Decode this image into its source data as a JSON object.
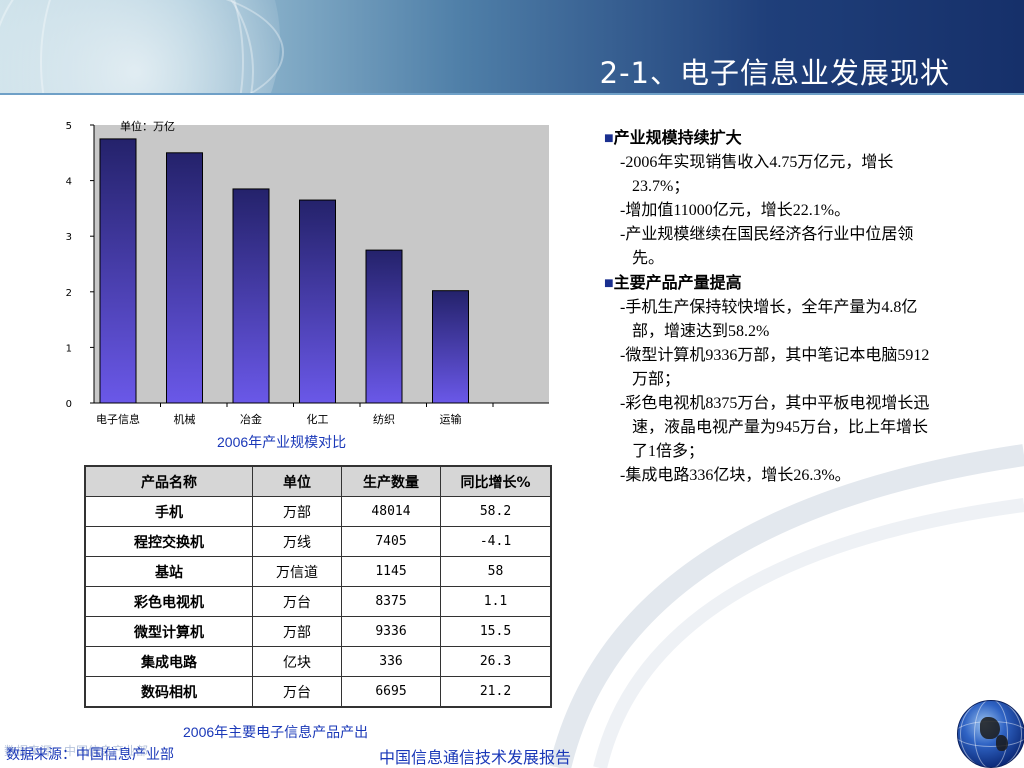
{
  "slide": {
    "title": "2-1、电子信息业发展现状"
  },
  "chart_data": {
    "type": "bar",
    "unit_note": "单位：万亿",
    "categories": [
      "电子信息",
      "机械",
      "冶金",
      "化工",
      "纺织",
      "运输"
    ],
    "values": [
      4.75,
      4.5,
      3.85,
      3.65,
      2.75,
      2.02
    ],
    "ylim": [
      0,
      5
    ],
    "yticks": [
      "0",
      "1",
      "2",
      "3",
      "4",
      "5"
    ],
    "grid": false,
    "colors": {
      "bar_top": "#24226b",
      "bar_bottom": "#6a58e8",
      "plot_bg": "#c8c8c8"
    }
  },
  "chart_caption": "2006年产业规模对比",
  "table": {
    "headers": [
      "产品名称",
      "单位",
      "生产数量",
      "同比增长%"
    ],
    "rows": [
      [
        "手机",
        "万部",
        "48014",
        "58.2"
      ],
      [
        "程控交换机",
        "万线",
        "7405",
        "-4.1"
      ],
      [
        "基站",
        "万信道",
        "1145",
        "58"
      ],
      [
        "彩色电视机",
        "万台",
        "8375",
        "1.1"
      ],
      [
        "微型计算机",
        "万部",
        "9336",
        "15.5"
      ],
      [
        "集成电路",
        "亿块",
        "336",
        "26.3"
      ],
      [
        "数码相机",
        "万台",
        "6695",
        "21.2"
      ]
    ]
  },
  "table_caption": "2006年主要电子信息产品产出",
  "sections": [
    {
      "mark": "■",
      "heading": "产业规模持续扩大",
      "points": [
        "-2006年实现销售收入4.75万亿元，增长23.7%；",
        "-增加值11000亿元，增长22.1%。",
        "-产业规模继续在国民经济各行业中位居领先。"
      ]
    },
    {
      "mark": "■",
      "heading": "主要产品产量提高",
      "points": [
        "-手机生产保持较快增长，全年产量为4.8亿部，增速达到58.2%",
        "-微型计算机9336万部，其中笔记本电脑5912万部；",
        "-彩色电视机8375万台，其中平板电视增长迅速，液晶电视产量为945万台，比上年增长了1倍多；",
        "-集成电路336亿块，增长26.3%。"
      ]
    }
  ],
  "footer": {
    "source": "数据来源：中国信息产业部",
    "title": "中国信息通信技术发展报告"
  },
  "icons": {
    "logo": "globe-icon"
  }
}
